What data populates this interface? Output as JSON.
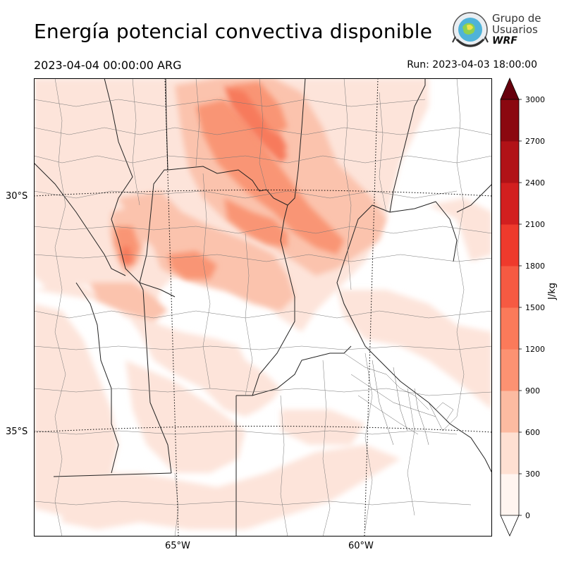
{
  "header": {
    "title": "Energía potencial convectiva disponible",
    "valid_time": "2023-04-04 00:00:00 ARG",
    "run_time": "Run: 2023-04-03 18:00:00"
  },
  "logo": {
    "line1": "Grupo de",
    "line2": "Usuarios",
    "line3": "WRF"
  },
  "axes": {
    "lat_labels": [
      "30°S",
      "35°S"
    ],
    "lon_labels": [
      "65°W",
      "60°W"
    ]
  },
  "colorbar": {
    "unit": "J/kg",
    "ticks": [
      "0",
      "300",
      "600",
      "900",
      "1200",
      "1500",
      "1800",
      "2100",
      "2400",
      "2700",
      "3000"
    ],
    "colors": [
      "#fff5f0",
      "#fee0d2",
      "#fcbba1",
      "#fc9272",
      "#fb7a5a",
      "#f65a42",
      "#ee3a2c",
      "#d21f1f",
      "#b11217",
      "#8b0810",
      "#67000d"
    ]
  },
  "colors": {
    "field_low": "#fde4da",
    "field_mid": "#fbc3ad",
    "field_high": "#f99575",
    "field_peak": "#f77a5c"
  }
}
